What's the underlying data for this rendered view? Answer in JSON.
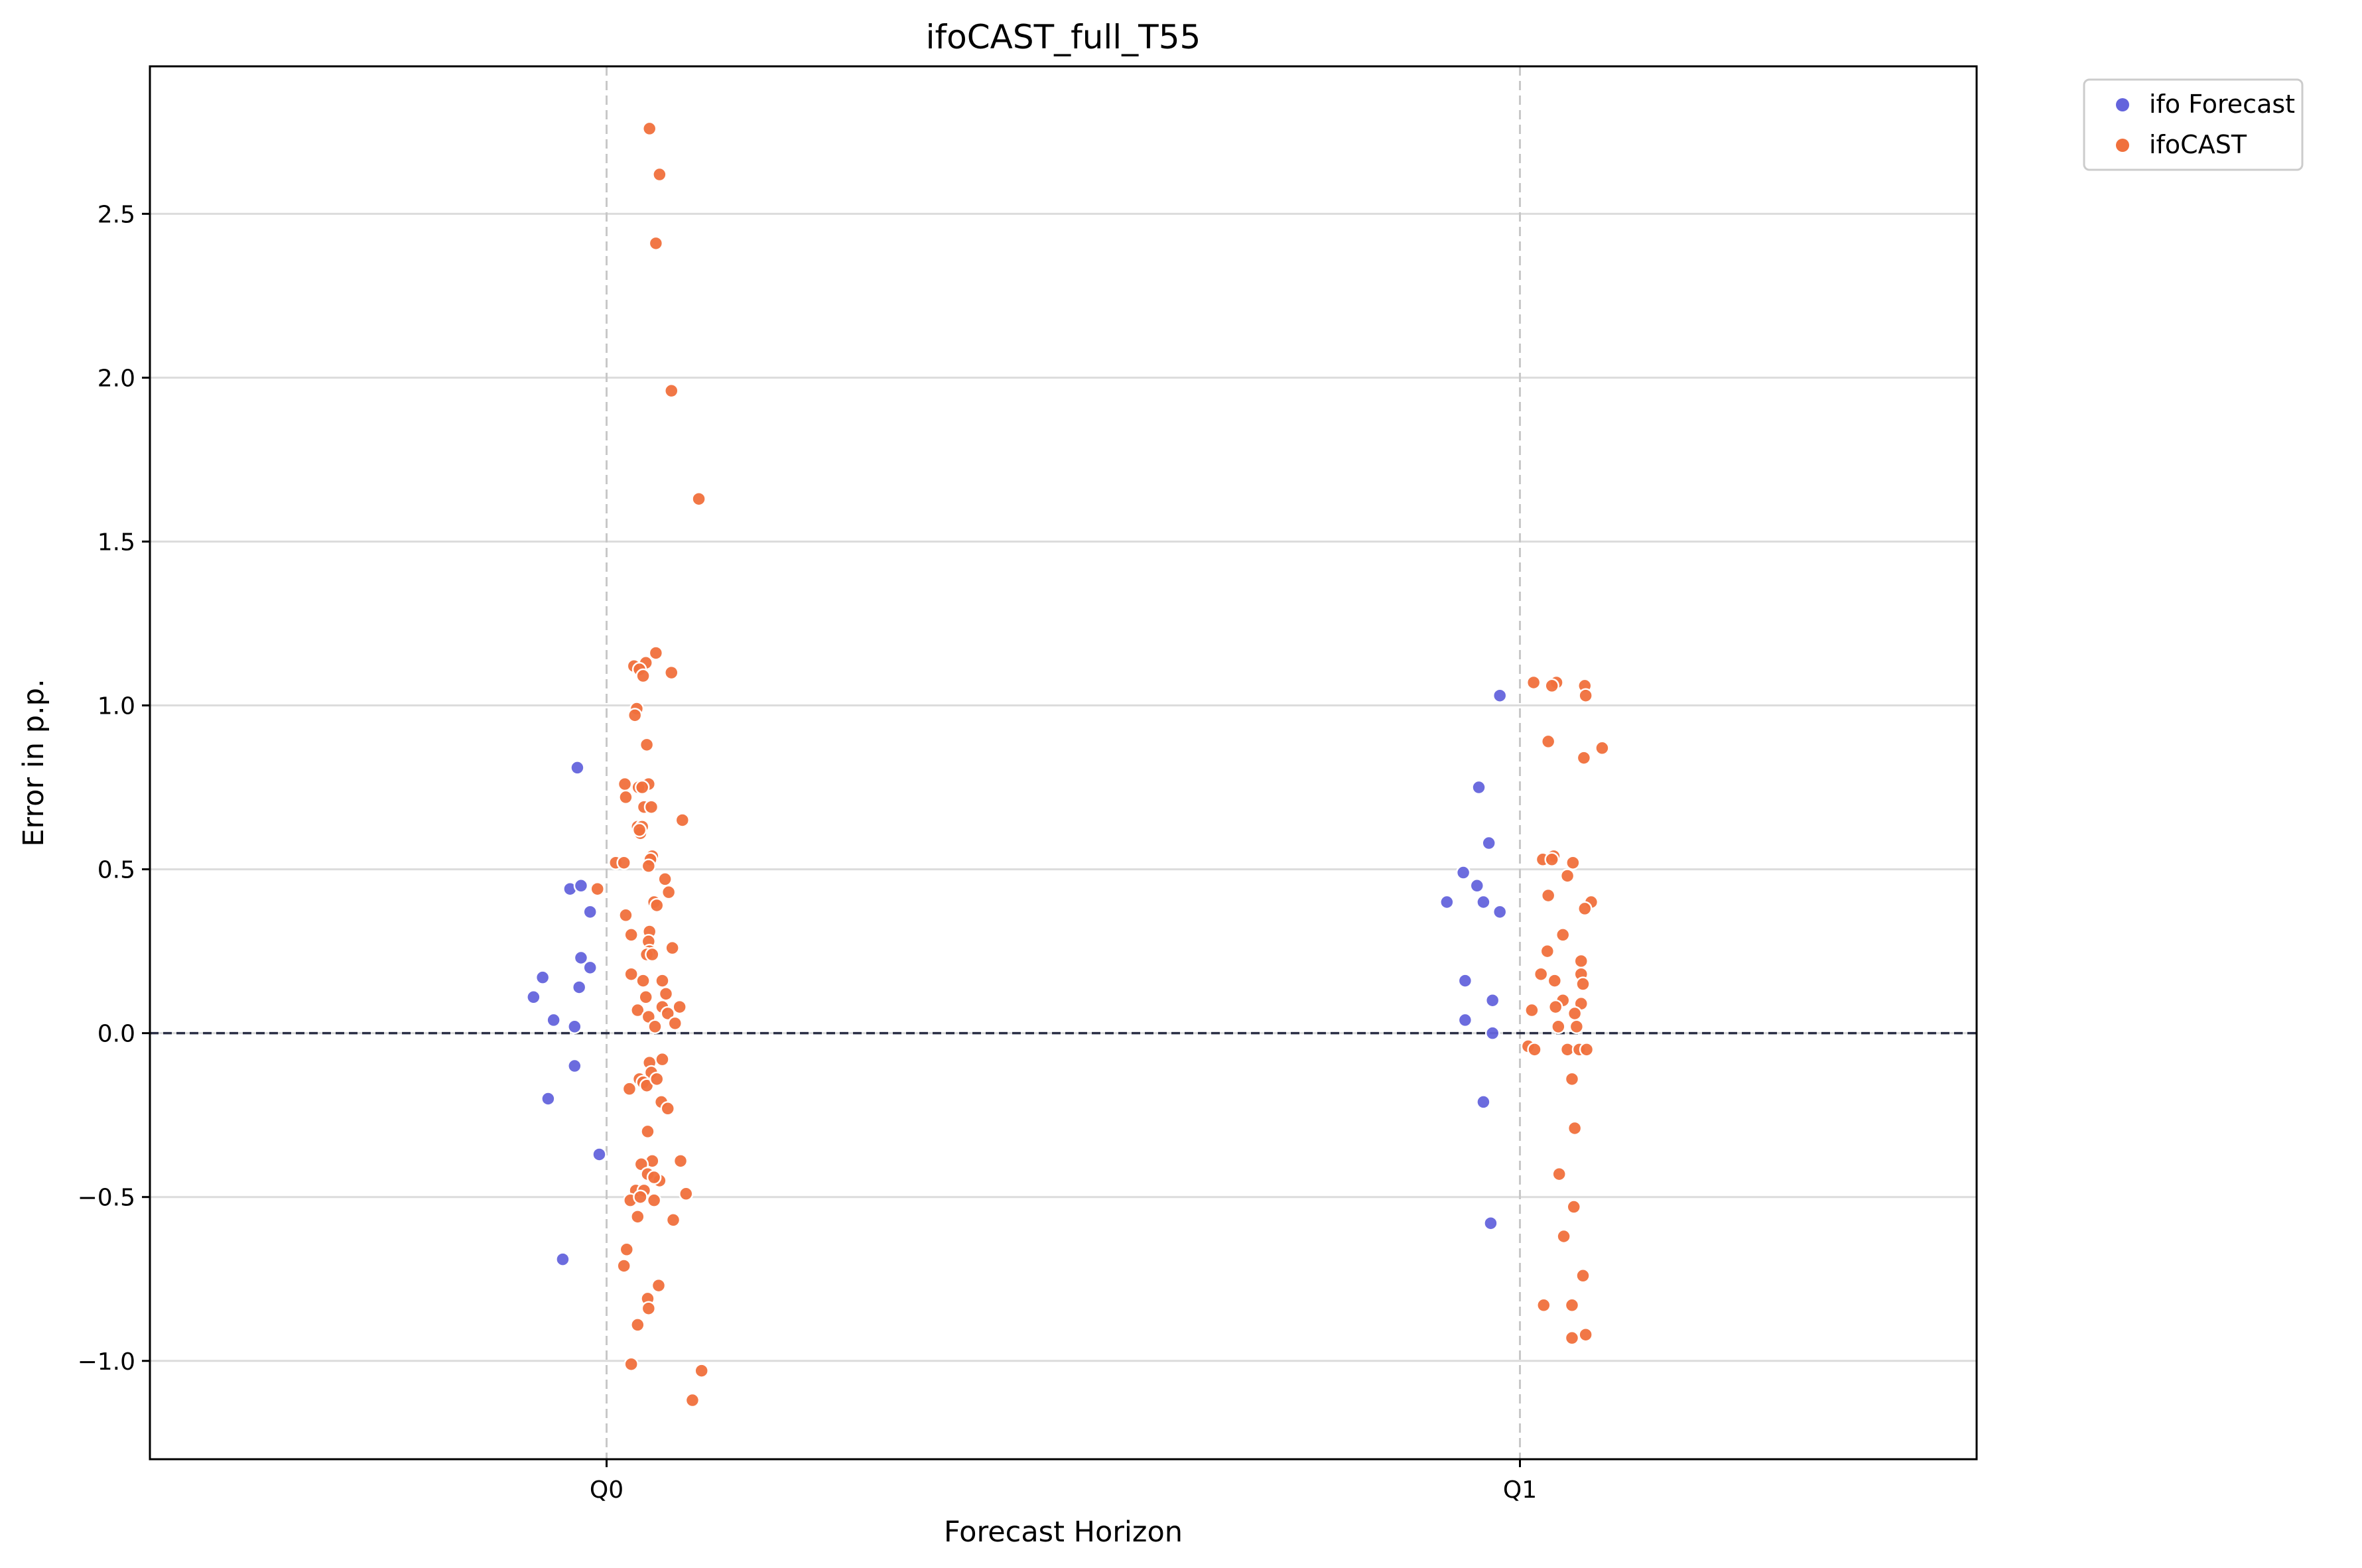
{
  "chart_data": {
    "type": "scatter",
    "title": "ifoCAST_full_T55",
    "xlabel": "Forecast Horizon",
    "ylabel": "Error in p.p.",
    "categories": [
      "Q0",
      "Q1"
    ],
    "ylim": [
      -1.3,
      2.95
    ],
    "yticks": [
      -1.0,
      -0.5,
      0.0,
      0.5,
      1.0,
      1.5,
      2.0,
      2.5
    ],
    "ytick_labels": [
      "−1.0",
      "−0.5",
      "0.0",
      "0.5",
      "1.0",
      "1.5",
      "2.0",
      "2.5"
    ],
    "xlim": [
      -0.5,
      1.5
    ],
    "grid": "horizontal lines; dashed vertical lines at categories",
    "reference_line": 0.0,
    "legend": "outside top-right",
    "series": [
      {
        "name": "ifo Forecast",
        "color": "#6464dc",
        "points": [
          {
            "x": -0.08,
            "y": 0.11
          },
          {
            "x": -0.07,
            "y": 0.17
          },
          {
            "x": -0.064,
            "y": -0.2
          },
          {
            "x": -0.058,
            "y": 0.04
          },
          {
            "x": -0.048,
            "y": -0.69
          },
          {
            "x": -0.04,
            "y": 0.44
          },
          {
            "x": -0.035,
            "y": 0.02
          },
          {
            "x": -0.035,
            "y": -0.1
          },
          {
            "x": -0.032,
            "y": 0.81
          },
          {
            "x": -0.03,
            "y": 0.14
          },
          {
            "x": -0.028,
            "y": 0.45
          },
          {
            "x": -0.028,
            "y": 0.23
          },
          {
            "x": -0.018,
            "y": 0.37
          },
          {
            "x": -0.018,
            "y": 0.2
          },
          {
            "x": -0.008,
            "y": -0.37
          },
          {
            "x": 0.92,
            "y": 0.4
          },
          {
            "x": 0.938,
            "y": 0.49
          },
          {
            "x": 0.94,
            "y": 0.16
          },
          {
            "x": 0.94,
            "y": 0.04
          },
          {
            "x": 0.953,
            "y": 0.45
          },
          {
            "x": 0.955,
            "y": 0.75
          },
          {
            "x": 0.96,
            "y": 0.4
          },
          {
            "x": 0.96,
            "y": -0.21
          },
          {
            "x": 0.966,
            "y": 0.58
          },
          {
            "x": 0.968,
            "y": -0.58
          },
          {
            "x": 0.97,
            "y": 0.1
          },
          {
            "x": 0.97,
            "y": 0.0
          },
          {
            "x": 0.978,
            "y": 0.37
          },
          {
            "x": 0.978,
            "y": 1.03
          }
        ]
      },
      {
        "name": "ifoCAST",
        "color": "#f0703c",
        "points": [
          {
            "x": 0.047,
            "y": 2.76
          },
          {
            "x": 0.058,
            "y": 2.62
          },
          {
            "x": 0.054,
            "y": 2.41
          },
          {
            "x": 0.071,
            "y": 1.96
          },
          {
            "x": 0.101,
            "y": 1.63
          },
          {
            "x": 0.054,
            "y": 1.16
          },
          {
            "x": 0.03,
            "y": 1.12
          },
          {
            "x": 0.043,
            "y": 1.13
          },
          {
            "x": 0.036,
            "y": 1.11
          },
          {
            "x": 0.04,
            "y": 1.09
          },
          {
            "x": 0.071,
            "y": 1.1
          },
          {
            "x": 0.033,
            "y": 0.99
          },
          {
            "x": 0.031,
            "y": 0.97
          },
          {
            "x": 0.044,
            "y": 0.88
          },
          {
            "x": 0.02,
            "y": 0.76
          },
          {
            "x": 0.046,
            "y": 0.76
          },
          {
            "x": 0.035,
            "y": 0.75
          },
          {
            "x": 0.039,
            "y": 0.75
          },
          {
            "x": 0.021,
            "y": 0.72
          },
          {
            "x": 0.041,
            "y": 0.69
          },
          {
            "x": 0.049,
            "y": 0.69
          },
          {
            "x": 0.083,
            "y": 0.65
          },
          {
            "x": 0.034,
            "y": 0.63
          },
          {
            "x": 0.039,
            "y": 0.63
          },
          {
            "x": 0.037,
            "y": 0.61
          },
          {
            "x": 0.036,
            "y": 0.62
          },
          {
            "x": 0.01,
            "y": 0.52
          },
          {
            "x": 0.019,
            "y": 0.52
          },
          {
            "x": 0.05,
            "y": 0.54
          },
          {
            "x": 0.048,
            "y": 0.53
          },
          {
            "x": 0.046,
            "y": 0.51
          },
          {
            "x": 0.064,
            "y": 0.47
          },
          {
            "x": -0.01,
            "y": 0.44
          },
          {
            "x": 0.068,
            "y": 0.43
          },
          {
            "x": 0.052,
            "y": 0.4
          },
          {
            "x": 0.055,
            "y": 0.39
          },
          {
            "x": 0.021,
            "y": 0.36
          },
          {
            "x": 0.047,
            "y": 0.31
          },
          {
            "x": 0.027,
            "y": 0.3
          },
          {
            "x": 0.046,
            "y": 0.28
          },
          {
            "x": 0.072,
            "y": 0.26
          },
          {
            "x": 0.047,
            "y": 0.25
          },
          {
            "x": 0.044,
            "y": 0.24
          },
          {
            "x": 0.05,
            "y": 0.24
          },
          {
            "x": 0.027,
            "y": 0.18
          },
          {
            "x": 0.04,
            "y": 0.16
          },
          {
            "x": 0.061,
            "y": 0.16
          },
          {
            "x": 0.065,
            "y": 0.12
          },
          {
            "x": 0.043,
            "y": 0.11
          },
          {
            "x": 0.08,
            "y": 0.08
          },
          {
            "x": 0.061,
            "y": 0.08
          },
          {
            "x": 0.034,
            "y": 0.07
          },
          {
            "x": 0.067,
            "y": 0.06
          },
          {
            "x": 0.046,
            "y": 0.05
          },
          {
            "x": 0.075,
            "y": 0.03
          },
          {
            "x": 0.053,
            "y": 0.02
          },
          {
            "x": 0.047,
            "y": -0.09
          },
          {
            "x": 0.061,
            "y": -0.08
          },
          {
            "x": 0.049,
            "y": -0.12
          },
          {
            "x": 0.036,
            "y": -0.14
          },
          {
            "x": 0.04,
            "y": -0.15
          },
          {
            "x": 0.044,
            "y": -0.16
          },
          {
            "x": 0.055,
            "y": -0.14
          },
          {
            "x": 0.025,
            "y": -0.17
          },
          {
            "x": 0.06,
            "y": -0.21
          },
          {
            "x": 0.067,
            "y": -0.23
          },
          {
            "x": 0.045,
            "y": -0.3
          },
          {
            "x": 0.05,
            "y": -0.39
          },
          {
            "x": 0.081,
            "y": -0.39
          },
          {
            "x": 0.038,
            "y": -0.4
          },
          {
            "x": 0.045,
            "y": -0.43
          },
          {
            "x": 0.058,
            "y": -0.45
          },
          {
            "x": 0.052,
            "y": -0.44
          },
          {
            "x": 0.032,
            "y": -0.48
          },
          {
            "x": 0.041,
            "y": -0.48
          },
          {
            "x": 0.087,
            "y": -0.49
          },
          {
            "x": 0.026,
            "y": -0.51
          },
          {
            "x": 0.052,
            "y": -0.51
          },
          {
            "x": 0.037,
            "y": -0.5
          },
          {
            "x": 0.034,
            "y": -0.56
          },
          {
            "x": 0.073,
            "y": -0.57
          },
          {
            "x": 0.022,
            "y": -0.66
          },
          {
            "x": 0.019,
            "y": -0.71
          },
          {
            "x": 0.057,
            "y": -0.77
          },
          {
            "x": 0.045,
            "y": -0.81
          },
          {
            "x": 0.046,
            "y": -0.84
          },
          {
            "x": 0.034,
            "y": -0.89
          },
          {
            "x": 0.027,
            "y": -1.01
          },
          {
            "x": 0.104,
            "y": -1.03
          },
          {
            "x": 0.094,
            "y": -1.12
          },
          {
            "x": 1.015,
            "y": 1.07
          },
          {
            "x": 1.04,
            "y": 1.07
          },
          {
            "x": 1.035,
            "y": 1.06
          },
          {
            "x": 1.071,
            "y": 1.06
          },
          {
            "x": 1.072,
            "y": 1.03
          },
          {
            "x": 1.031,
            "y": 0.89
          },
          {
            "x": 1.09,
            "y": 0.87
          },
          {
            "x": 1.07,
            "y": 0.84
          },
          {
            "x": 1.037,
            "y": 0.54
          },
          {
            "x": 1.025,
            "y": 0.53
          },
          {
            "x": 1.058,
            "y": 0.52
          },
          {
            "x": 1.035,
            "y": 0.53
          },
          {
            "x": 1.052,
            "y": 0.48
          },
          {
            "x": 1.031,
            "y": 0.42
          },
          {
            "x": 1.078,
            "y": 0.4
          },
          {
            "x": 1.071,
            "y": 0.38
          },
          {
            "x": 1.047,
            "y": 0.3
          },
          {
            "x": 1.03,
            "y": 0.25
          },
          {
            "x": 1.067,
            "y": 0.22
          },
          {
            "x": 1.067,
            "y": 0.18
          },
          {
            "x": 1.023,
            "y": 0.18
          },
          {
            "x": 1.069,
            "y": 0.15
          },
          {
            "x": 1.038,
            "y": 0.16
          },
          {
            "x": 1.047,
            "y": 0.1
          },
          {
            "x": 1.067,
            "y": 0.09
          },
          {
            "x": 1.039,
            "y": 0.08
          },
          {
            "x": 1.013,
            "y": 0.07
          },
          {
            "x": 1.06,
            "y": 0.06
          },
          {
            "x": 1.062,
            "y": 0.02
          },
          {
            "x": 1.042,
            "y": 0.02
          },
          {
            "x": 1.009,
            "y": -0.04
          },
          {
            "x": 1.016,
            "y": -0.05
          },
          {
            "x": 1.052,
            "y": -0.05
          },
          {
            "x": 1.065,
            "y": -0.05
          },
          {
            "x": 1.073,
            "y": -0.05
          },
          {
            "x": 1.057,
            "y": -0.14
          },
          {
            "x": 1.06,
            "y": -0.29
          },
          {
            "x": 1.043,
            "y": -0.43
          },
          {
            "x": 1.059,
            "y": -0.53
          },
          {
            "x": 1.048,
            "y": -0.62
          },
          {
            "x": 1.069,
            "y": -0.74
          },
          {
            "x": 1.026,
            "y": -0.83
          },
          {
            "x": 1.057,
            "y": -0.83
          },
          {
            "x": 1.072,
            "y": -0.92
          },
          {
            "x": 1.057,
            "y": -0.93
          }
        ]
      }
    ]
  }
}
